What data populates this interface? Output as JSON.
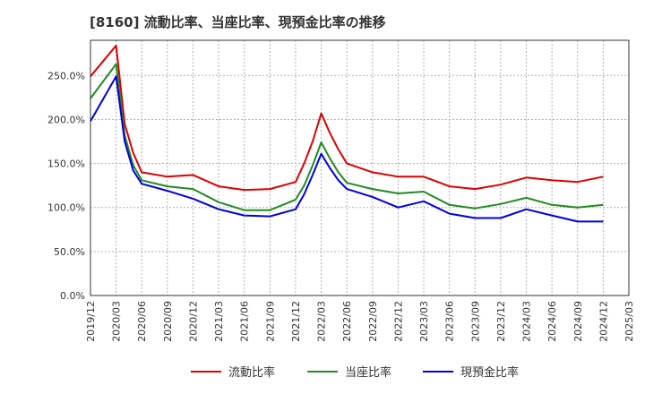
{
  "chart_data": {
    "type": "line",
    "title": "[8160]  流動比率、当座比率、現預金比率の推移",
    "xlabel": "",
    "ylabel": "",
    "ylim": [
      0,
      290
    ],
    "yticks": [
      0,
      50,
      100,
      150,
      200,
      250
    ],
    "ytick_labels": [
      "0.0%",
      "50.0%",
      "100.0%",
      "150.0%",
      "200.0%",
      "250.0%"
    ],
    "x_range": [
      "2019/12",
      "2025/03"
    ],
    "xtick_labels": [
      "2019/12",
      "2020/03",
      "2020/06",
      "2020/09",
      "2020/12",
      "2021/03",
      "2021/06",
      "2021/09",
      "2021/12",
      "2022/03",
      "2022/06",
      "2022/09",
      "2022/12",
      "2023/03",
      "2023/06",
      "2023/09",
      "2023/12",
      "2024/03",
      "2024/06",
      "2024/09",
      "2024/12",
      "2025/03"
    ],
    "grid": true,
    "legend_position": "bottom",
    "series": [
      {
        "name": "流動比率",
        "color": "#dd0000",
        "points": [
          [
            "2019/12",
            249
          ],
          [
            "2020/03",
            284
          ],
          [
            "2020/04",
            195
          ],
          [
            "2020/05",
            162
          ],
          [
            "2020/06",
            140
          ],
          [
            "2020/09",
            135
          ],
          [
            "2020/12",
            137
          ],
          [
            "2021/03",
            124
          ],
          [
            "2021/06",
            120
          ],
          [
            "2021/09",
            121
          ],
          [
            "2021/12",
            129
          ],
          [
            "2022/01",
            150
          ],
          [
            "2022/02",
            175
          ],
          [
            "2022/03",
            207
          ],
          [
            "2022/04",
            185
          ],
          [
            "2022/05",
            166
          ],
          [
            "2022/06",
            150
          ],
          [
            "2022/09",
            140
          ],
          [
            "2022/12",
            135
          ],
          [
            "2023/03",
            135
          ],
          [
            "2023/06",
            124
          ],
          [
            "2023/09",
            121
          ],
          [
            "2023/12",
            126
          ],
          [
            "2024/03",
            134
          ],
          [
            "2024/06",
            131
          ],
          [
            "2024/09",
            129
          ],
          [
            "2024/12",
            135
          ]
        ]
      },
      {
        "name": "当座比率",
        "color": "#228b22",
        "points": [
          [
            "2019/12",
            224
          ],
          [
            "2020/03",
            263
          ],
          [
            "2020/04",
            182
          ],
          [
            "2020/05",
            148
          ],
          [
            "2020/06",
            131
          ],
          [
            "2020/09",
            124
          ],
          [
            "2020/12",
            121
          ],
          [
            "2021/03",
            106
          ],
          [
            "2021/06",
            97
          ],
          [
            "2021/09",
            97
          ],
          [
            "2021/12",
            109
          ],
          [
            "2022/01",
            125
          ],
          [
            "2022/02",
            148
          ],
          [
            "2022/03",
            174
          ],
          [
            "2022/04",
            156
          ],
          [
            "2022/05",
            140
          ],
          [
            "2022/06",
            128
          ],
          [
            "2022/09",
            121
          ],
          [
            "2022/12",
            116
          ],
          [
            "2023/03",
            118
          ],
          [
            "2023/06",
            103
          ],
          [
            "2023/09",
            99
          ],
          [
            "2023/12",
            104
          ],
          [
            "2024/03",
            111
          ],
          [
            "2024/06",
            103
          ],
          [
            "2024/09",
            100
          ],
          [
            "2024/12",
            103
          ]
        ]
      },
      {
        "name": "現預金比率",
        "color": "#0000dd",
        "points": [
          [
            "2019/12",
            198
          ],
          [
            "2020/03",
            249
          ],
          [
            "2020/04",
            175
          ],
          [
            "2020/05",
            142
          ],
          [
            "2020/06",
            127
          ],
          [
            "2020/09",
            119
          ],
          [
            "2020/12",
            110
          ],
          [
            "2021/03",
            98
          ],
          [
            "2021/06",
            91
          ],
          [
            "2021/09",
            90
          ],
          [
            "2021/12",
            98
          ],
          [
            "2022/01",
            115
          ],
          [
            "2022/02",
            137
          ],
          [
            "2022/03",
            161
          ],
          [
            "2022/04",
            145
          ],
          [
            "2022/05",
            131
          ],
          [
            "2022/06",
            121
          ],
          [
            "2022/09",
            112
          ],
          [
            "2022/12",
            100
          ],
          [
            "2023/03",
            107
          ],
          [
            "2023/06",
            93
          ],
          [
            "2023/09",
            88
          ],
          [
            "2023/12",
            88
          ],
          [
            "2024/03",
            98
          ],
          [
            "2024/06",
            91
          ],
          [
            "2024/09",
            84
          ],
          [
            "2024/12",
            84
          ]
        ]
      }
    ]
  }
}
